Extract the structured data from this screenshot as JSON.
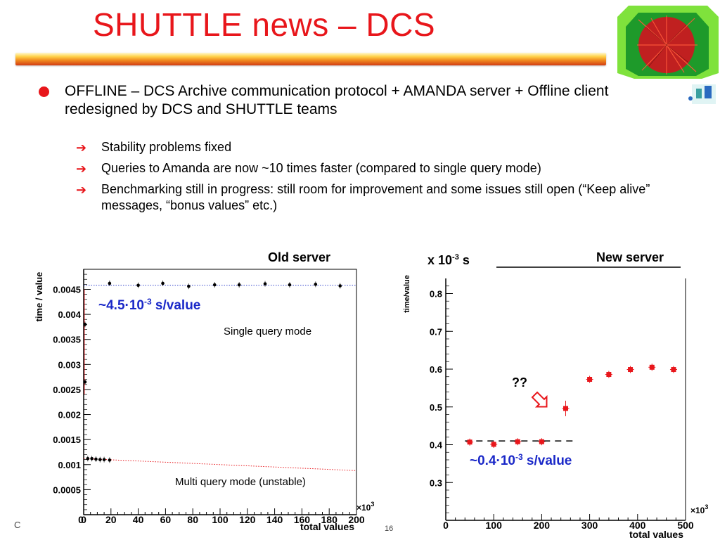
{
  "slide": {
    "title": "SHUTTLE news – DCS",
    "bullet_main": "OFFLINE – DCS Archive communication protocol + AMANDA server + Offline client redesigned by DCS and SHUTTLE teams",
    "sub_bullets": [
      "Stability problems fixed",
      "Queries to Amanda are now ~10 times faster (compared to single query mode)",
      "Benchmarking still in progress: still room for improvement and some issues still open (“Keep alive” messages, “bonus values” etc.)"
    ],
    "accent_color": "#e8161b"
  },
  "left_panel": {
    "header": "Old server",
    "annotation_rate_prefix": "~4.5·10",
    "annotation_rate_exp": "-3",
    "annotation_rate_suffix": " s/value",
    "annotation_single": "Single query mode",
    "annotation_multi": "Multi query mode (unstable)",
    "multiplier_base": "×10",
    "multiplier_exp": "3"
  },
  "right_panel": {
    "header": "New server",
    "scale_prefix": "x 10",
    "scale_exp": "-3",
    "scale_suffix": " s",
    "question": "??",
    "annotation_rate_prefix": "~0.4·10",
    "annotation_rate_exp": "-3",
    "annotation_rate_suffix": " s/value",
    "multiplier_base": "×10",
    "multiplier_exp": "3"
  },
  "footer_fragment_left": "C",
  "footer_fragment_mid": "16",
  "chart_data": [
    {
      "type": "scatter",
      "title": "Old server",
      "xlabel": "total values",
      "ylabel": "time / value",
      "xlim": [
        0,
        200
      ],
      "ylim": [
        0,
        0.0049
      ],
      "x_ticks": [
        0,
        20,
        40,
        60,
        80,
        100,
        120,
        140,
        160,
        180,
        200
      ],
      "y_ticks": [
        0.0005,
        0.001,
        0.0015,
        0.002,
        0.0025,
        0.003,
        0.0035,
        0.004,
        0.0045
      ],
      "series": [
        {
          "x": [
            1,
            1,
            19,
            40,
            58,
            77,
            96,
            114,
            133,
            151,
            170,
            188
          ],
          "y": [
            0.0038,
            0.00265,
            0.00462,
            0.00458,
            0.00462,
            0.00456,
            0.00459,
            0.00459,
            0.00461,
            0.00459,
            0.0046,
            0.00457
          ]
        },
        {
          "x": [
            3,
            6,
            9,
            12,
            15,
            19
          ],
          "y": [
            0.00112,
            0.00112,
            0.00111,
            0.0011,
            0.0011,
            0.00109
          ]
        }
      ],
      "reference_lines": [
        {
          "style": "dotted",
          "color": "#3344cc",
          "y": 0.00458
        },
        {
          "style": "dotted",
          "color": "#e8161b",
          "x": [
            0,
            200
          ],
          "y": [
            0.00112,
            0.00088
          ]
        }
      ]
    },
    {
      "type": "scatter",
      "title": "New server",
      "xlabel": "total values",
      "ylabel": "time/value",
      "xlim": [
        0,
        500
      ],
      "ylim": [
        0.2,
        0.84
      ],
      "x_ticks": [
        0,
        100,
        200,
        300,
        400,
        500
      ],
      "y_ticks": [
        0.3,
        0.4,
        0.5,
        0.6,
        0.7,
        0.8
      ],
      "series": [
        {
          "x": [
            50,
            100,
            150,
            200,
            250,
            300,
            340,
            385,
            430,
            475
          ],
          "y": [
            0.407,
            0.401,
            0.408,
            0.408,
            0.496,
            0.573,
            0.586,
            0.599,
            0.605,
            0.599
          ]
        }
      ],
      "reference_lines": [
        {
          "style": "dashed",
          "color": "#000000",
          "y": 0.41
        }
      ]
    }
  ]
}
